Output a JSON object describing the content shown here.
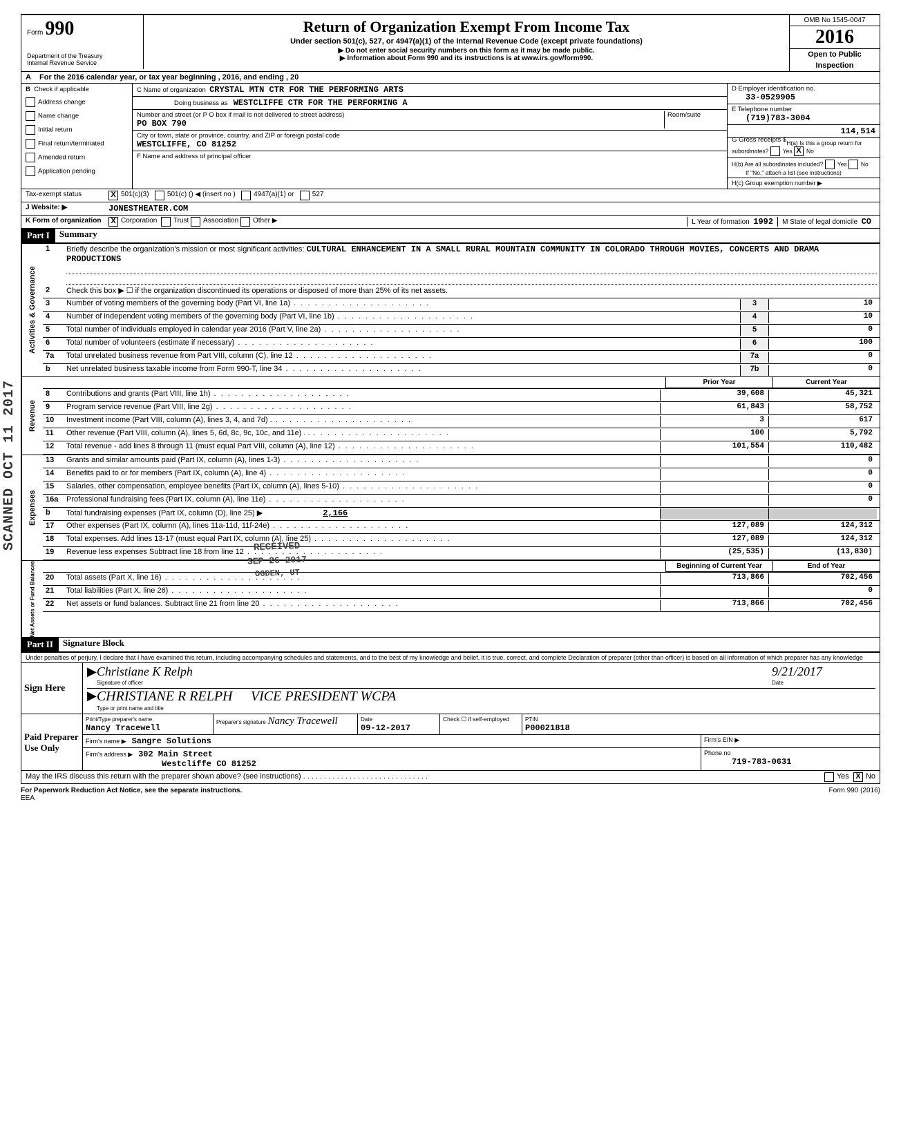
{
  "header": {
    "form_label": "Form",
    "form_number": "990",
    "department": "Department of the Treasury",
    "irs": "Internal Revenue Service",
    "title": "Return of Organization Exempt From Income Tax",
    "subtitle": "Under section 501(c), 527, or 4947(a)(1) of the Internal Revenue Code (except private foundations)",
    "note1": "▶ Do not enter social security numbers on this form as it may be made public.",
    "note2": "▶ Information about Form 990 and its instructions is at www.irs.gov/form990.",
    "omb": "OMB No 1545-0047",
    "year": "2016",
    "open": "Open to Public",
    "inspection": "Inspection"
  },
  "line_a": "For the 2016 calendar year, or tax year beginning                                              , 2016, and ending                                    , 20",
  "section_b": {
    "header": "Check if applicable",
    "checks": [
      "Address change",
      "Name change",
      "Initial return",
      "Final return/terminated",
      "Amended return",
      "Application pending"
    ],
    "c_label": "C  Name of organization",
    "c_value": "CRYSTAL MTN CTR FOR THE PERFORMING ARTS",
    "dba_label": "Doing business as",
    "dba_value": "WESTCLIFFE CTR FOR THE PERFORMING A",
    "street_label": "Number and street (or P O  box if mail is not delivered to street address)",
    "street_value": "PO BOX 790",
    "room_label": "Room/suite",
    "city_label": "City or town, state or province, country, and ZIP or foreign postal code",
    "city_value": "WESTCLIFFE, CO 81252",
    "f_label": "F  Name and address of principal officer",
    "d_label": "D   Employer identification no.",
    "d_value": "33-0529905",
    "e_label": "E   Telephone number",
    "e_value": "(719)783-3004",
    "g_label": "G   Gross receipts $",
    "g_value": "114,514",
    "h_a": "H(a)  Is this a group return for subordinates?",
    "h_b": "H(b)  Are all subordinates included?",
    "h_note": "If \"No,\" attach a list  (see instructions)",
    "h_c": "H(c)   Group exemption number  ▶"
  },
  "tax_status": {
    "label": "Tax-exempt status",
    "opt1": "501(c)(3)",
    "opt2": "501(c) (",
    "insert": ")  ◀  (insert no )",
    "opt3": "4947(a)(1) or",
    "opt4": "527"
  },
  "j": {
    "label": "J     Website: ▶",
    "value": "JONESTHEATER.COM"
  },
  "k": {
    "label": "K    Form of organization",
    "opts": [
      "Corporation",
      "Trust",
      "Association",
      "Other ▶"
    ],
    "l_label": "L  Year of formation",
    "l_value": "1992",
    "m_label": "M   State of legal domicile",
    "m_value": "CO"
  },
  "part1": {
    "header": "Part I",
    "title": "Summary",
    "sidebar1": "Activities & Governance",
    "sidebar2": "Revenue",
    "sidebar3": "Expenses",
    "sidebar4": "Net Assets or Fund Balances",
    "line1_label": "Briefly describe the organization's mission or most significant activities:",
    "line1_text": "CULTURAL ENHANCEMENT IN A SMALL RURAL MOUNTAIN COMMUNITY IN COLORADO THROUGH MOVIES, CONCERTS AND DRAMA PRODUCTIONS",
    "line2": "Check this box ▶ ☐  if the organization discontinued its operations or disposed of more than 25% of its net assets.",
    "lines_single": [
      {
        "num": "3",
        "text": "Number of voting members of the governing body (Part VI, line 1a)",
        "box": "3",
        "val": "10"
      },
      {
        "num": "4",
        "text": "Number of independent voting members of the governing body (Part VI, line 1b)",
        "box": "4",
        "val": "10"
      },
      {
        "num": "5",
        "text": "Total number of individuals employed in calendar year 2016 (Part V, line 2a)",
        "box": "5",
        "val": "0"
      },
      {
        "num": "6",
        "text": "Total number of volunteers (estimate if necessary)",
        "box": "6",
        "val": "100"
      },
      {
        "num": "7a",
        "text": "Total unrelated business revenue from Part VIII, column (C), line 12",
        "box": "7a",
        "val": "0"
      },
      {
        "num": "b",
        "text": "Net unrelated business taxable income from Form 990-T, line 34",
        "box": "7b",
        "val": "0"
      }
    ],
    "prior_label": "Prior Year",
    "current_label": "Current Year",
    "lines_double": [
      {
        "num": "8",
        "text": "Contributions and grants (Part VIII, line 1h)",
        "prior": "39,608",
        "curr": "45,321"
      },
      {
        "num": "9",
        "text": "Program service revenue (Part VIII, line 2g)",
        "prior": "61,843",
        "curr": "58,752"
      },
      {
        "num": "10",
        "text": "Investment income (Part VIII, column (A), lines 3, 4, and 7d) .",
        "prior": "3",
        "curr": "617"
      },
      {
        "num": "11",
        "text": "Other revenue (Part VIII, column (A), lines 5, 6d, 8c, 9c, 10c, and 11e) . .",
        "prior": "100",
        "curr": "5,792"
      },
      {
        "num": "12",
        "text": "Total revenue - add lines 8 through 11 (must equal Part VIII, column (A), line 12)",
        "prior": "101,554",
        "curr": "110,482"
      },
      {
        "num": "13",
        "text": "Grants and similar amounts paid (Part IX, column (A), lines 1-3)",
        "prior": "",
        "curr": "0"
      },
      {
        "num": "14",
        "text": "Benefits paid to or for members (Part IX, column (A), line 4)",
        "prior": "",
        "curr": "0"
      },
      {
        "num": "15",
        "text": "Salaries, other compensation, employee benefits (Part IX, column (A), lines 5-10)",
        "prior": "",
        "curr": "0"
      },
      {
        "num": "16a",
        "text": "Professional fundraising fees (Part IX, column (A), line 11e)",
        "prior": "",
        "curr": "0"
      }
    ],
    "line16b": {
      "num": "b",
      "text": "Total fundraising expenses (Part IX, column (D), line 25) ▶",
      "val": "2,166"
    },
    "lines_double2": [
      {
        "num": "17",
        "text": "Other expenses (Part IX, column (A), lines 11a-11d, 11f-24e)",
        "prior": "127,089",
        "curr": "124,312"
      },
      {
        "num": "18",
        "text": "Total expenses.  Add lines 13-17 (must equal Part IX, column (A), line 25)",
        "prior": "127,089",
        "curr": "124,312"
      },
      {
        "num": "19",
        "text": "Revenue less expenses   Subtract line 18 from line 12",
        "prior": "(25,535)",
        "curr": "(13,830)"
      }
    ],
    "begin_label": "Beginning of Current Year",
    "end_label": "End of Year",
    "lines_double3": [
      {
        "num": "20",
        "text": "Total assets (Part X, line 16)",
        "prior": "713,866",
        "curr": "702,456"
      },
      {
        "num": "21",
        "text": "Total liabilities (Part X, line 26)",
        "prior": "",
        "curr": "0"
      },
      {
        "num": "22",
        "text": "Net assets or fund balances.  Subtract line 21 from line 20",
        "prior": "713,866",
        "curr": "702,456"
      }
    ],
    "received_stamp": "RECEIVED",
    "date_stamp": "SEP 26 2017",
    "ogden_stamp": "OGDEN, UT"
  },
  "part2": {
    "header": "Part II",
    "title": "Signature Block",
    "perjury": "Under penalties of perjury, I declare that I have examined this return, including accompanying schedules and statements, and to the best of my knowledge and belief, it is true, correct, and complete  Declaration of preparer (other than officer) is based on all information of which preparer has any knowledge",
    "sign_here": "Sign Here",
    "sig_officer": "Signature of officer",
    "date_label": "Date",
    "officer_sig": "Christiane K Relph",
    "officer_date": "9/21/2017",
    "type_name_label": "Type or print name and title",
    "officer_name": "CHRISTIANE R RELPH",
    "officer_title": "VICE PRESIDENT WCPA",
    "paid_preparer": "Paid Preparer Use Only",
    "preparer_name_label": "Print/Type preparer's name",
    "preparer_name": "Nancy Tracewell",
    "preparer_sig_label": "Preparer's signature",
    "preparer_sig": "Nancy Tracewell",
    "prep_date_label": "Date",
    "prep_date": "09-12-2017",
    "check_label": "Check ☐ if self-employed",
    "ptin_label": "PTIN",
    "ptin": "P00021818",
    "firm_name_label": "Firm's name    ▶",
    "firm_name": "Sangre Solutions",
    "firm_ein_label": "Firm's EIN  ▶",
    "firm_addr_label": "Firm's address ▶",
    "firm_addr1": "302 Main Street",
    "firm_addr2": "Westcliffe CO 81252",
    "phone_label": "Phone no",
    "phone": "719-783-0631",
    "discuss": "May the IRS discuss this return with the preparer shown above? (see instructions) .",
    "yes": "Yes",
    "no": "No"
  },
  "footer": {
    "paperwork": "For Paperwork Reduction Act Notice, see the separate instructions.",
    "eea": "EEA",
    "form": "Form 990 (2016)"
  },
  "scanned": "SCANNED OCT 11 2017"
}
